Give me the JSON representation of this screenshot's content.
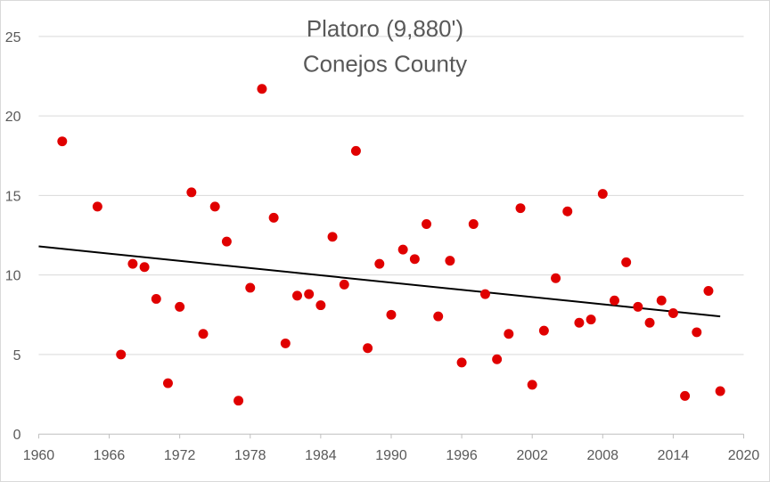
{
  "chart_data": {
    "type": "scatter",
    "title": "Platoro  (9,880')",
    "subtitle": "Conejos County",
    "xlabel": "",
    "ylabel": "",
    "xlim": [
      1960,
      2020
    ],
    "ylim": [
      0,
      25
    ],
    "xticks": [
      "1960",
      "1966",
      "1972",
      "1978",
      "1984",
      "1990",
      "1996",
      "2002",
      "2008",
      "2014",
      "2020"
    ],
    "yticks": [
      "0",
      "5",
      "10",
      "15",
      "20",
      "25"
    ],
    "grid": "horizontal",
    "legend": "none",
    "marker_color": "#e00000",
    "trendline": {
      "color": "#000000",
      "x": [
        1960,
        2018
      ],
      "y": [
        11.8,
        7.4
      ]
    },
    "series": [
      {
        "x": [
          1962,
          1965,
          1967,
          1968,
          1969,
          1970,
          1971,
          1972,
          1973,
          1974,
          1975,
          1976,
          1977,
          1978,
          1979,
          1980,
          1981,
          1982,
          1983,
          1984,
          1985,
          1986,
          1987,
          1988,
          1989,
          1990,
          1991,
          1992,
          1993,
          1994,
          1995,
          1996,
          1997,
          1998,
          1999,
          2000,
          2001,
          2002,
          2003,
          2004,
          2005,
          2006,
          2007,
          2008,
          2009,
          2010,
          2011,
          2012,
          2013,
          2014,
          2015,
          2016,
          2017,
          2018
        ],
        "y": [
          18.4,
          14.3,
          5.0,
          10.7,
          10.5,
          8.5,
          3.2,
          8.0,
          15.2,
          6.3,
          14.3,
          12.1,
          2.1,
          9.2,
          21.7,
          13.6,
          5.7,
          8.7,
          8.8,
          8.1,
          12.4,
          9.4,
          17.8,
          5.4,
          10.7,
          7.5,
          11.6,
          11.0,
          13.2,
          7.4,
          10.9,
          4.5,
          13.2,
          8.8,
          4.7,
          6.3,
          14.2,
          3.1,
          6.5,
          9.8,
          14.0,
          7.0,
          7.2,
          15.1,
          8.4,
          10.8,
          8.0,
          7.0,
          8.4,
          7.6,
          2.4,
          6.4,
          9.0,
          2.7
        ]
      }
    ]
  }
}
